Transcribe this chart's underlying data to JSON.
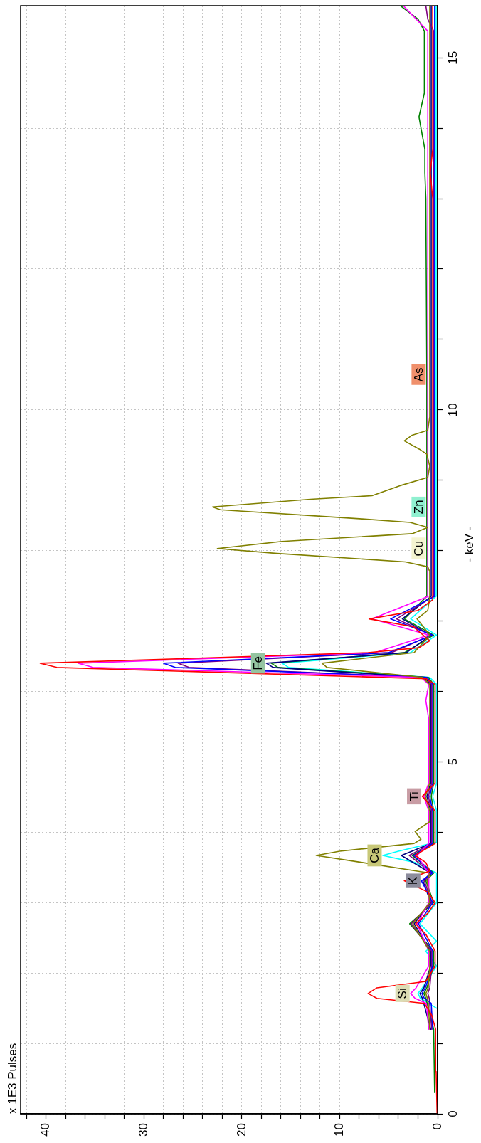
{
  "chart_data": {
    "type": "line",
    "ylabel": "- keV -",
    "xlim": [
      42.6,
      0
    ],
    "ylim": [
      0,
      15.74
    ],
    "xticks": [
      0,
      {
        "value": 2,
        "label": null
      },
      {
        "value": 4,
        "label": null
      },
      {
        "value": 6,
        "label": null
      },
      {
        "value": 8,
        "label": null
      },
      10,
      {
        "value": 12,
        "label": null
      },
      {
        "value": 14,
        "label": null
      },
      {
        "value": 16,
        "label": null
      },
      {
        "value": 18,
        "label": null
      },
      20,
      {
        "value": 22,
        "label": null
      },
      {
        "value": 24,
        "label": null
      },
      {
        "value": 26,
        "label": null
      },
      {
        "value": 28,
        "label": null
      },
      30,
      {
        "value": 32,
        "label": null
      },
      {
        "value": 34,
        "label": null
      },
      {
        "value": 36,
        "label": null
      },
      {
        "value": 38,
        "label": null
      },
      40,
      {
        "value": 42,
        "label": null
      }
    ],
    "yticks": [
      0,
      {
        "value": 1,
        "label": null
      },
      {
        "value": 2,
        "label": null
      },
      {
        "value": 3,
        "label": null
      },
      {
        "value": 4,
        "label": null
      },
      5,
      {
        "value": 6,
        "label": null
      },
      {
        "value": 7,
        "label": null
      },
      {
        "value": 8,
        "label": null
      },
      {
        "value": 9,
        "label": null
      },
      10,
      {
        "value": 11,
        "label": null
      },
      {
        "value": 12,
        "label": null
      },
      {
        "value": 13,
        "label": null
      },
      {
        "value": 14,
        "label": null
      },
      15
    ],
    "grid": true,
    "series": [
      {
        "color": "#ff0000",
        "x": [
          0.05,
          0.1,
          0.15,
          0.2,
          0.6,
          1.35,
          6.2,
          7.1,
          6.2,
          1.2,
          0.25,
          0.25,
          1.2,
          2.25,
          1.0,
          0.25,
          1.0,
          3.4,
          0.8,
          1.2,
          2.3,
          1.6,
          0.25,
          0.25,
          1.56,
          0.25,
          0.25,
          1.2,
          38.9,
          40.6,
          25.0,
          7.1,
          1.9,
          0.8,
          2.5,
          7.0,
          2.0,
          0.5,
          0.5,
          0.75,
          0.5,
          0.5
        ],
        "values": [
          0,
          0.3,
          0.6,
          1.2,
          1.4,
          1.57,
          1.64,
          1.71,
          1.79,
          1.88,
          2.1,
          2.31,
          2.55,
          2.7,
          2.85,
          3.0,
          3.15,
          3.31,
          3.45,
          3.57,
          3.67,
          3.73,
          3.84,
          4.3,
          4.51,
          4.7,
          6.1,
          6.18,
          6.34,
          6.4,
          6.47,
          6.55,
          6.62,
          6.72,
          6.92,
          7.03,
          7.15,
          7.3,
          13.0,
          13.37,
          13.7,
          15.74
        ]
      },
      {
        "color": "#808000",
        "x": [
          0.8,
          0.95,
          1.05,
          1.2,
          0.95,
          0.8,
          0.8,
          2.55,
          0.8,
          1.05,
          0.8,
          7.7,
          12.4,
          10.0,
          2.4,
          1.7,
          2.3,
          0.8,
          0.8,
          1.25,
          0.8,
          0.8,
          1.55,
          11.3,
          11.8,
          7.5,
          2.4,
          0.8,
          2.1,
          1.0,
          0.8,
          0.8,
          1.0,
          3.3,
          16.4,
          22.5,
          15.9,
          2.6,
          1.0,
          2.8,
          7.7,
          22.2,
          23.0,
          13.0,
          6.7,
          3.9,
          1.0,
          0.8,
          1.1,
          1.85,
          3.4,
          2.6,
          1.0,
          0.8,
          0.8
        ],
        "values": [
          1.2,
          1.57,
          1.64,
          1.71,
          1.79,
          2.1,
          2.31,
          2.7,
          3.0,
          3.31,
          3.42,
          3.57,
          3.67,
          3.73,
          3.84,
          3.9,
          4.01,
          4.15,
          4.3,
          4.51,
          4.7,
          6.1,
          6.2,
          6.34,
          6.4,
          6.47,
          6.55,
          6.8,
          7.03,
          7.15,
          7.35,
          7.7,
          7.77,
          7.84,
          7.96,
          8.03,
          8.13,
          8.24,
          8.33,
          8.4,
          8.45,
          8.58,
          8.62,
          8.73,
          8.78,
          8.92,
          9.04,
          9.2,
          9.37,
          9.44,
          9.56,
          9.64,
          9.71,
          9.9,
          15.74
        ]
      },
      {
        "color": "#ff00ff",
        "x": [
          0.9,
          1.15,
          2.3,
          2.75,
          2.2,
          0.9,
          0.9,
          2.1,
          0.9,
          0.9,
          2.1,
          0.9,
          0.9,
          1.4,
          0.9,
          0.9,
          1.2,
          0.9,
          1.7,
          35.2,
          36.7,
          22.6,
          6.4,
          0.9,
          6.7,
          0.95,
          1.0,
          2.2,
          3.5
        ],
        "values": [
          1.2,
          1.57,
          1.64,
          1.71,
          1.79,
          2.1,
          2.31,
          2.7,
          3.0,
          3.42,
          3.67,
          3.84,
          4.3,
          4.51,
          4.7,
          5.6,
          5.87,
          6.1,
          6.2,
          6.34,
          6.4,
          6.47,
          6.55,
          6.8,
          7.03,
          7.35,
          15.38,
          15.55,
          15.74
        ]
      },
      {
        "color": "#0000ff",
        "x": [
          0.5,
          0.65,
          1.35,
          1.6,
          1.25,
          0.5,
          0.5,
          1.95,
          0.5,
          1.65,
          0.5,
          2.45,
          0.5,
          0.5,
          0.8,
          0.5,
          0.5,
          1.1,
          26.8,
          28.0,
          17.3,
          5.0,
          0.5,
          4.8,
          0.3,
          0.3
        ],
        "values": [
          1.2,
          1.57,
          1.64,
          1.71,
          1.79,
          2.1,
          2.31,
          2.7,
          3.0,
          3.31,
          3.42,
          3.67,
          3.84,
          4.3,
          4.51,
          4.7,
          6.1,
          6.2,
          6.34,
          6.4,
          6.47,
          6.55,
          6.8,
          7.03,
          7.35,
          15.74
        ]
      },
      {
        "color": "#800080",
        "x": [
          0.6,
          0.85,
          1.0,
          0.8,
          0.6,
          0.6,
          2.7,
          0.6,
          1.35,
          0.6,
          2.9,
          0.6,
          0.6,
          0.95,
          0.6,
          0.6,
          1.25,
          25.4,
          26.5,
          16.4,
          4.7,
          0.6,
          4.2,
          0.4,
          0.4,
          1.0,
          1.2
        ],
        "values": [
          1.2,
          1.64,
          1.71,
          1.79,
          2.1,
          2.31,
          2.7,
          3.0,
          3.31,
          3.42,
          3.67,
          3.84,
          4.3,
          4.51,
          4.7,
          6.1,
          6.2,
          6.34,
          6.4,
          6.47,
          6.55,
          6.8,
          7.03,
          7.35,
          15.38,
          15.55,
          15.74
        ]
      },
      {
        "color": "#000080",
        "x": [
          0.7,
          1.55,
          1.8,
          1.4,
          0.7,
          0.7,
          2.4,
          0.7,
          1.5,
          0.7,
          3.7,
          0.7,
          0.7,
          1.1,
          0.7,
          0.7,
          1.4,
          16.8,
          17.5,
          10.8,
          3.2,
          0.7,
          3.6,
          0.65,
          0.65
        ],
        "values": [
          1.2,
          1.64,
          1.71,
          1.79,
          2.1,
          2.31,
          2.7,
          3.0,
          3.31,
          3.42,
          3.67,
          3.84,
          4.3,
          4.51,
          4.7,
          6.1,
          6.2,
          6.34,
          6.4,
          6.47,
          6.55,
          6.8,
          7.03,
          7.35,
          15.74
        ]
      },
      {
        "color": "#008000",
        "x": [
          0.3,
          0.4,
          1.2,
          1.4,
          1.1,
          0.4,
          0.4,
          2.85,
          0.4,
          1.2,
          0.4,
          2.6,
          0.4,
          0.4,
          0.65,
          0.4,
          0.4,
          0.95,
          16.3,
          17.0,
          10.6,
          3.4,
          0.4,
          3.4,
          1.1,
          1.1,
          1.2,
          1.3,
          1.3,
          1.9,
          1.35,
          1.35,
          2.0,
          3.8
        ],
        "values": [
          0.3,
          1.2,
          1.64,
          1.71,
          1.79,
          2.1,
          2.31,
          2.7,
          3.0,
          3.31,
          3.42,
          3.67,
          3.84,
          4.3,
          4.51,
          4.7,
          6.1,
          6.2,
          6.34,
          6.4,
          6.47,
          6.55,
          6.8,
          7.03,
          7.35,
          10.5,
          13.0,
          13.37,
          13.7,
          14.16,
          14.5,
          15.38,
          15.55,
          15.74
        ]
      },
      {
        "color": "#00ffff",
        "x": [
          0.1,
          1.75,
          2.0,
          1.55,
          0.1,
          1.2,
          0.1,
          1.8,
          0.1,
          0.1,
          2.3,
          5.6,
          4.0,
          0.1,
          0.1,
          0.5,
          0.1,
          0.1,
          0.8,
          15.2,
          15.9,
          9.8,
          2.8,
          0.1,
          2.75,
          0.15,
          0.15
        ],
        "values": [
          1.5,
          1.64,
          1.71,
          1.79,
          2.1,
          2.31,
          2.45,
          2.7,
          3.0,
          3.42,
          3.57,
          3.67,
          3.73,
          3.86,
          4.3,
          4.51,
          4.7,
          6.1,
          6.2,
          6.34,
          6.4,
          6.47,
          6.55,
          6.8,
          7.03,
          7.35,
          15.74
        ]
      }
    ],
    "annotations": [
      "x 1E3 Pulses",
      {
        "text": "Si",
        "x": 2.75,
        "y": 1.71
      },
      {
        "text": "K",
        "x": 1.65,
        "y": 3.31
      },
      {
        "text": "Ca",
        "x": 5.6,
        "y": 3.67
      },
      {
        "text": "Ti",
        "x": 1.56,
        "y": 4.51
      },
      {
        "text": "Fe",
        "x": 17.5,
        "y": 6.4
      },
      {
        "text": "Cu",
        "x": 1.1,
        "y": 8.03
      },
      {
        "text": "Zn",
        "x": 1.1,
        "y": 8.62
      },
      {
        "text": "As",
        "x": 1.1,
        "y": 10.5
      }
    ]
  }
}
